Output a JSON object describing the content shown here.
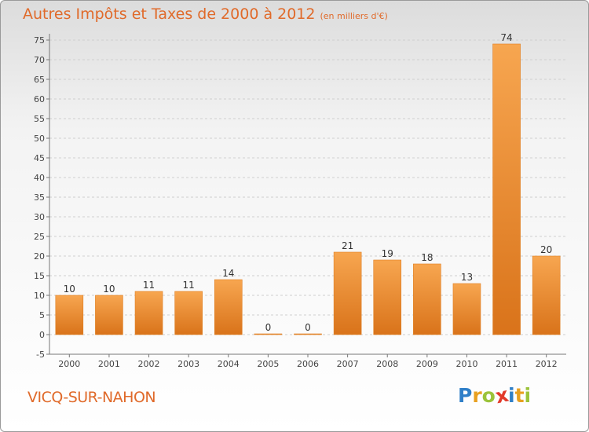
{
  "title": "Autres Impôts et Taxes de 2000 à 2012",
  "subtitle": "(en milliers d'€)",
  "commune": "VICQ-SUR-NAHON",
  "logo": {
    "letters": [
      {
        "char": "P",
        "color": "#2f7fc8"
      },
      {
        "char": "r",
        "color": "#e8a020"
      },
      {
        "char": "o",
        "color": "#9bc33a"
      },
      {
        "char": "x",
        "color": "#e23a2a"
      },
      {
        "char": "i",
        "color": "#2f7fc8"
      },
      {
        "char": "t",
        "color": "#e8a020"
      },
      {
        "char": "i",
        "color": "#9bc33a"
      }
    ]
  },
  "chart_data": {
    "type": "bar",
    "categories": [
      "2000",
      "2001",
      "2002",
      "2003",
      "2004",
      "2005",
      "2006",
      "2007",
      "2008",
      "2009",
      "2010",
      "2011",
      "2012"
    ],
    "values": [
      10,
      10,
      11,
      11,
      14,
      0,
      0,
      21,
      19,
      18,
      13,
      74,
      20
    ],
    "ylim": [
      -5,
      75
    ],
    "yticks": [
      -5,
      0,
      5,
      10,
      15,
      20,
      25,
      30,
      35,
      40,
      45,
      50,
      55,
      60,
      65,
      70,
      75
    ],
    "grid": true,
    "bar_color": "#f08a2e",
    "title": "Autres Impôts et Taxes de 2000 à 2012",
    "xlabel": "",
    "ylabel": ""
  }
}
